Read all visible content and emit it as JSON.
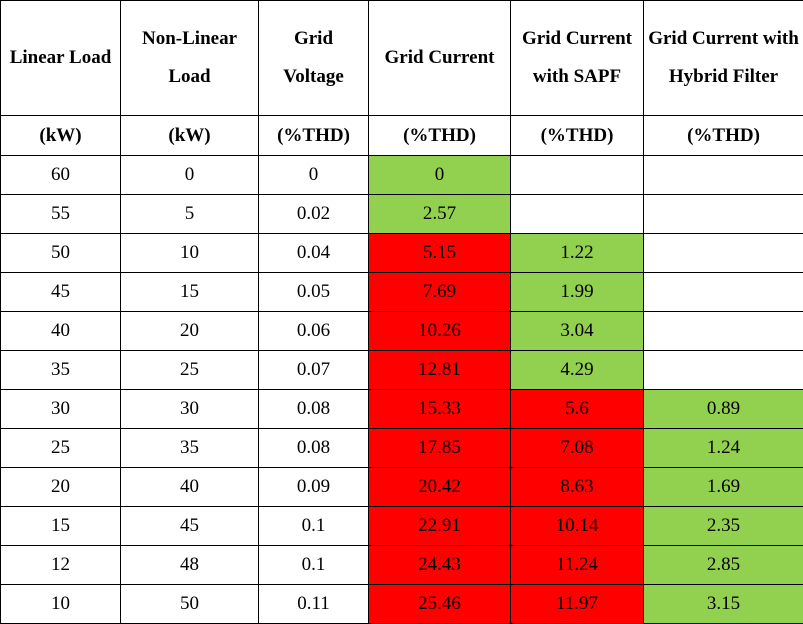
{
  "table": {
    "headers": [
      "Linear Load",
      "Non-Linear Load",
      "Grid Voltage",
      "Grid Current",
      "Grid Current with SAPF",
      "Grid Current with Hybrid Filter"
    ],
    "units": [
      "(kW)",
      "(kW)",
      "(%THD)",
      "(%THD)",
      "(%THD)",
      "(%THD)"
    ],
    "rows": [
      [
        60,
        0,
        0,
        0,
        null,
        null
      ],
      [
        55,
        5,
        0.02,
        2.57,
        null,
        null
      ],
      [
        50,
        10,
        0.04,
        5.15,
        1.22,
        null
      ],
      [
        45,
        15,
        0.05,
        7.69,
        1.99,
        null
      ],
      [
        40,
        20,
        0.06,
        10.26,
        3.04,
        null
      ],
      [
        35,
        25,
        0.07,
        12.81,
        4.29,
        null
      ],
      [
        30,
        30,
        0.08,
        15.33,
        5.6,
        0.89
      ],
      [
        25,
        35,
        0.08,
        17.85,
        7.08,
        1.24
      ],
      [
        20,
        40,
        0.09,
        20.42,
        8.63,
        1.69
      ],
      [
        15,
        45,
        0.1,
        22.91,
        10.14,
        2.35
      ],
      [
        12,
        48,
        0.1,
        24.43,
        11.24,
        2.85
      ],
      [
        10,
        50,
        0.11,
        25.46,
        11.97,
        3.15
      ]
    ],
    "cell_colors": [
      [
        null,
        null,
        null,
        "#92d050",
        null,
        null
      ],
      [
        null,
        null,
        null,
        "#92d050",
        null,
        null
      ],
      [
        null,
        null,
        null,
        "#ff0000",
        "#92d050",
        null
      ],
      [
        null,
        null,
        null,
        "#ff0000",
        "#92d050",
        null
      ],
      [
        null,
        null,
        null,
        "#ff0000",
        "#92d050",
        null
      ],
      [
        null,
        null,
        null,
        "#ff0000",
        "#92d050",
        null
      ],
      [
        null,
        null,
        null,
        "#ff0000",
        "#ff0000",
        "#92d050"
      ],
      [
        null,
        null,
        null,
        "#ff0000",
        "#ff0000",
        "#92d050"
      ],
      [
        null,
        null,
        null,
        "#ff0000",
        "#ff0000",
        "#92d050"
      ],
      [
        null,
        null,
        null,
        "#ff0000",
        "#ff0000",
        "#92d050"
      ],
      [
        null,
        null,
        null,
        "#ff0000",
        "#ff0000",
        "#92d050"
      ],
      [
        null,
        null,
        null,
        "#ff0000",
        "#ff0000",
        "#92d050"
      ]
    ]
  }
}
